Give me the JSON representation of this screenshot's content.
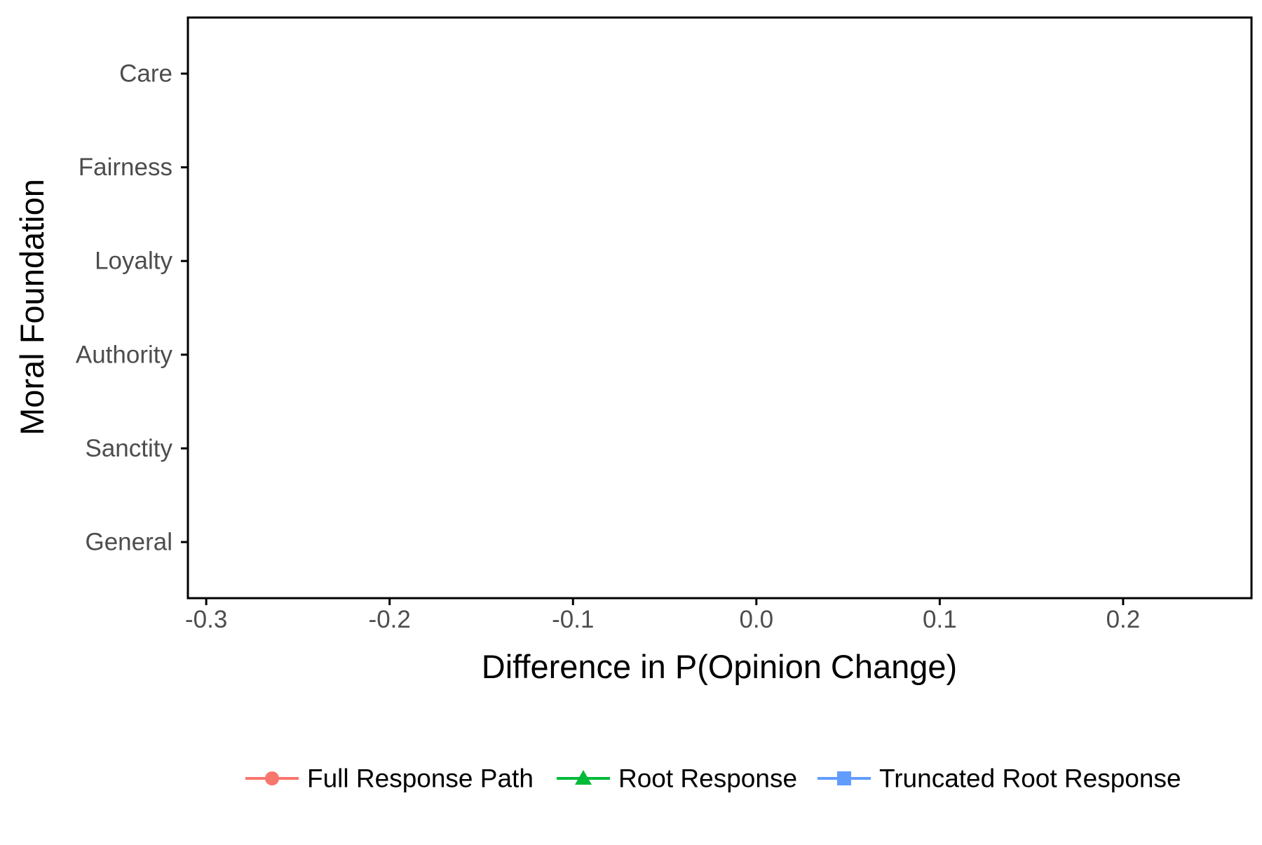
{
  "chart_data": {
    "type": "scatter",
    "orientation": "horizontal",
    "title": "",
    "xlabel": "Difference in P(Opinion Change)",
    "ylabel": "Moral Foundation",
    "xlim": [
      -0.31,
      0.27
    ],
    "xticks": [
      -0.3,
      -0.2,
      -0.1,
      0.0,
      0.1,
      0.2
    ],
    "xtick_labels": [
      "-0.3",
      "-0.2",
      "-0.1",
      "0.0",
      "0.1",
      "0.2"
    ],
    "categories": [
      "Care",
      "Fairness",
      "Loyalty",
      "Authority",
      "Sanctity",
      "General"
    ],
    "grid": false,
    "legend_position": "bottom",
    "series": [
      {
        "name": "Full Response Path",
        "color": "#f8766d",
        "marker": "circle",
        "values": []
      },
      {
        "name": "Root Response",
        "color": "#00ba38",
        "marker": "triangle",
        "values": []
      },
      {
        "name": "Truncated Root Response",
        "color": "#619cff",
        "marker": "square",
        "values": []
      }
    ]
  }
}
